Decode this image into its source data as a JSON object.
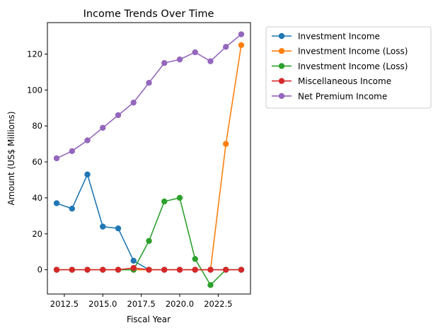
{
  "chart_data": {
    "type": "line",
    "title": "Income Trends Over Time",
    "xlabel": "Fiscal Year",
    "ylabel": "Amount (US$ Millions)",
    "xlim": [
      2011.4,
      2024.6
    ],
    "ylim": [
      -13.5,
      137.5
    ],
    "xticks": [
      2012.5,
      2015.0,
      2017.5,
      2020.0,
      2022.5
    ],
    "xtick_labels": [
      "2012.5",
      "2015.0",
      "2017.5",
      "2020.0",
      "2022.5"
    ],
    "yticks": [
      0,
      20,
      40,
      60,
      80,
      100,
      120
    ],
    "ytick_labels": [
      "0",
      "20",
      "40",
      "60",
      "80",
      "100",
      "120"
    ],
    "grid": false,
    "legend_position": "outside-right-top",
    "x": [
      2012,
      2013,
      2014,
      2015,
      2016,
      2017,
      2018,
      2019,
      2020,
      2021,
      2022,
      2023,
      2024
    ],
    "series": [
      {
        "name": "Investment Income",
        "color": "#1f77b4",
        "values": [
          37,
          34,
          53,
          24,
          23,
          5,
          0,
          0,
          0,
          0,
          0,
          0,
          0
        ]
      },
      {
        "name": "Investment Income (Loss)",
        "color": "#ff7f0e",
        "values": [
          0,
          0,
          0,
          0,
          0,
          0,
          0,
          0,
          0,
          0,
          0,
          70,
          125
        ]
      },
      {
        "name": "Investment Income (Loss)",
        "color": "#2ca02c",
        "values": [
          0,
          0,
          0,
          0,
          0,
          0,
          16,
          38,
          40,
          6,
          -8.5,
          0,
          0
        ]
      },
      {
        "name": "Miscellaneous Income",
        "color": "#d62728",
        "values": [
          0,
          0,
          0,
          0,
          0,
          1,
          0,
          0,
          0,
          0,
          0,
          0,
          0
        ]
      },
      {
        "name": "Net Premium Income",
        "color": "#9467bd",
        "values": [
          62,
          66,
          72,
          79,
          86,
          93,
          104,
          115,
          117,
          121,
          116,
          124,
          131
        ]
      }
    ]
  }
}
